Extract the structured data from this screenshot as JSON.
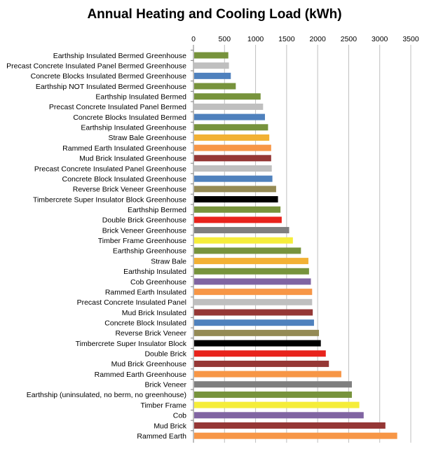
{
  "chart_data": {
    "type": "bar",
    "orientation": "horizontal",
    "title": "Annual Heating and Cooling Load  (kWh)",
    "xlabel": "",
    "ylabel": "",
    "xlim": [
      0,
      3500
    ],
    "ticks": [
      0,
      500,
      1000,
      1500,
      2000,
      2500,
      3000,
      3500
    ],
    "x_axis_position": "top",
    "grid": true,
    "legend": "none",
    "categories": [
      "Earthship Insulated Bermed Greenhouse",
      "Precast Concrete Insulated Panel Bermed Greenhouse",
      "Concrete Blocks Insulated Bermed Greenhouse",
      "Earthship NOT Insulated Bermed Greenhouse",
      "Earthship Insulated Bermed",
      "Precast Concrete Insulated Panel Bermed",
      "Concrete Blocks Insulated Bermed",
      "Earthship Insulated Greenhouse",
      "Straw Bale Greenhouse",
      "Rammed Earth Insulated Greenhouse",
      "Mud Brick Insulated Greenhouse",
      "Precast Concrete Insulated Panel Greenhouse",
      "Concrete Block Insulated Greenhouse",
      "Reverse Brick Veneer Greenhouse",
      "Timbercrete Super Insulator Block Greenhouse",
      "Earthship Bermed",
      "Double Brick Greenhouse",
      "Brick Veneer Greenhouse",
      "Timber Frame Greenhouse",
      "Earthship Greenhouse",
      "Straw Bale",
      "Earthship Insulated",
      "Cob Greenhouse",
      "Rammed Earth Insulated",
      "Precast Concrete Insulated Panel",
      "Mud Brick Insulated",
      "Concrete Block Insulated",
      "Reverse Brick Veneer",
      "Timbercrete Super Insulator Block",
      "Double Brick",
      "Mud Brick Greenhouse",
      "Rammed Earth Greenhouse",
      "Brick Veneer",
      "Earthship (uninsulated, no berm, no greenhouse)",
      "Timber Frame",
      "Cob",
      "Mud Brick",
      "Rammed Earth"
    ],
    "values": [
      550,
      560,
      590,
      670,
      1070,
      1110,
      1140,
      1190,
      1210,
      1240,
      1240,
      1250,
      1260,
      1320,
      1350,
      1390,
      1410,
      1530,
      1590,
      1720,
      1840,
      1850,
      1880,
      1900,
      1900,
      1910,
      1930,
      2010,
      2040,
      2120,
      2170,
      2370,
      2540,
      2540,
      2660,
      2730,
      3080,
      3270
    ],
    "colors": [
      "#77933c",
      "#bfbfbf",
      "#4f81bd",
      "#77933c",
      "#77933c",
      "#bfbfbf",
      "#4f81bd",
      "#77933c",
      "#f2b134",
      "#f79646",
      "#953735",
      "#bfbfbf",
      "#4f81bd",
      "#948a54",
      "#000000",
      "#77933c",
      "#e8231c",
      "#7f7f7f",
      "#f5ed3a",
      "#77933c",
      "#f2b134",
      "#77933c",
      "#8064a2",
      "#f79646",
      "#bfbfbf",
      "#953735",
      "#4f81bd",
      "#948a54",
      "#000000",
      "#e8231c",
      "#953735",
      "#f79646",
      "#7f7f7f",
      "#77933c",
      "#f5ed3a",
      "#8064a2",
      "#953735",
      "#f79646"
    ]
  }
}
